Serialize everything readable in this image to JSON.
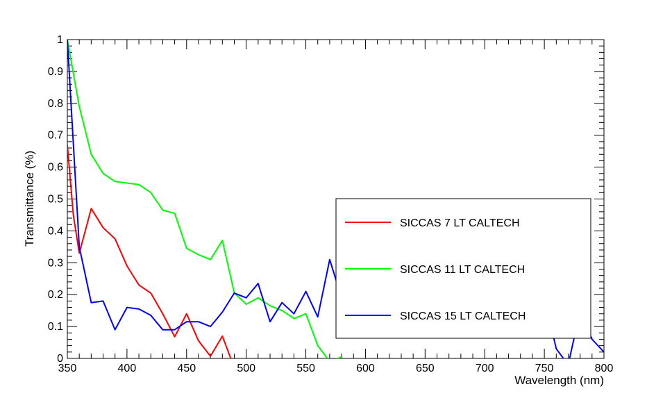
{
  "chart_data": {
    "type": "line",
    "title": "",
    "xlabel": "Wavelength (nm)",
    "ylabel": "Transmittance (%)",
    "xlim": [
      350,
      800
    ],
    "ylim": [
      0,
      1
    ],
    "x_ticks": [
      "350",
      "400",
      "450",
      "500",
      "550",
      "600",
      "650",
      "700",
      "750",
      "800"
    ],
    "y_ticks": [
      "0",
      "0.1",
      "0.2",
      "0.3",
      "0.4",
      "0.5",
      "0.6",
      "0.7",
      "0.8",
      "0.9",
      "1"
    ],
    "grid": false,
    "legend_position": "right",
    "series": [
      {
        "name": "SICCAS 7 LT CALTECH",
        "color": "#ff0000",
        "x": [
          350,
          355,
          360,
          370,
          380,
          390,
          400,
          410,
          420,
          430,
          440,
          450,
          460,
          470,
          480,
          490
        ],
        "y": [
          0.67,
          0.45,
          0.33,
          0.47,
          0.41,
          0.375,
          0.29,
          0.23,
          0.205,
          0.14,
          0.068,
          0.14,
          0.055,
          0.007,
          0.07,
          -0.03
        ]
      },
      {
        "name": "SICCAS 11 LT CALTECH",
        "color": "#00ff00",
        "x": [
          350,
          360,
          370,
          380,
          390,
          400,
          410,
          420,
          430,
          440,
          450,
          460,
          470,
          480,
          490,
          500,
          510,
          520,
          530,
          540,
          550,
          560,
          570,
          580
        ],
        "y": [
          1.0,
          0.79,
          0.64,
          0.58,
          0.555,
          0.55,
          0.545,
          0.52,
          0.465,
          0.455,
          0.345,
          0.325,
          0.31,
          0.37,
          0.205,
          0.17,
          0.19,
          0.165,
          0.15,
          0.125,
          0.14,
          0.04,
          -0.01,
          0.005
        ]
      },
      {
        "name": "SICCAS 15 LT CALTECH",
        "color": "#0000ff",
        "x": [
          350,
          360,
          370,
          380,
          390,
          400,
          410,
          420,
          430,
          440,
          450,
          460,
          470,
          480,
          490,
          500,
          510,
          520,
          530,
          540,
          550,
          560,
          570,
          580,
          750,
          760,
          770,
          780,
          790,
          800
        ],
        "y": [
          1.0,
          0.35,
          0.175,
          0.18,
          0.09,
          0.16,
          0.155,
          0.135,
          0.09,
          0.09,
          0.115,
          0.115,
          0.1,
          0.145,
          0.205,
          0.19,
          0.235,
          0.115,
          0.175,
          0.14,
          0.21,
          0.13,
          0.31,
          0.19,
          0.19,
          0.03,
          -0.02,
          0.15,
          0.06,
          0.02
        ]
      }
    ]
  }
}
